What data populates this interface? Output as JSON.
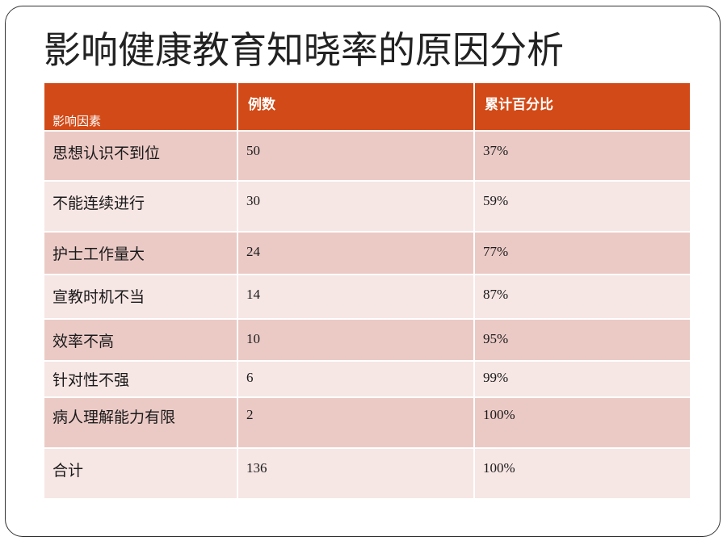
{
  "slide": {
    "title": "影响健康教育知晓率的原因分析"
  },
  "table": {
    "headers": {
      "factor": "影响因素",
      "count": "例数",
      "cumulative": "累计百分比"
    },
    "rows": [
      {
        "factor": "思想认识不到位",
        "count": "50",
        "cumulative": "37%"
      },
      {
        "factor": "不能连续进行",
        "count": "30",
        "cumulative": "59%"
      },
      {
        "factor": "护士工作量大",
        "count": "24",
        "cumulative": "77%"
      },
      {
        "factor": "宣教时机不当",
        "count": "14",
        "cumulative": "87%"
      },
      {
        "factor": "效率不高",
        "count": "10",
        "cumulative": "95%"
      },
      {
        "factor": "针对性不强",
        "count": "6",
        "cumulative": "99%"
      },
      {
        "factor": "病人理解能力有限",
        "count": "2",
        "cumulative": "100%"
      },
      {
        "factor": "合计",
        "count": "136",
        "cumulative": "100%"
      }
    ]
  },
  "colors": {
    "header_bg": "#d24a17",
    "row_odd": "#ebcac6",
    "row_even": "#f6e6e4"
  }
}
